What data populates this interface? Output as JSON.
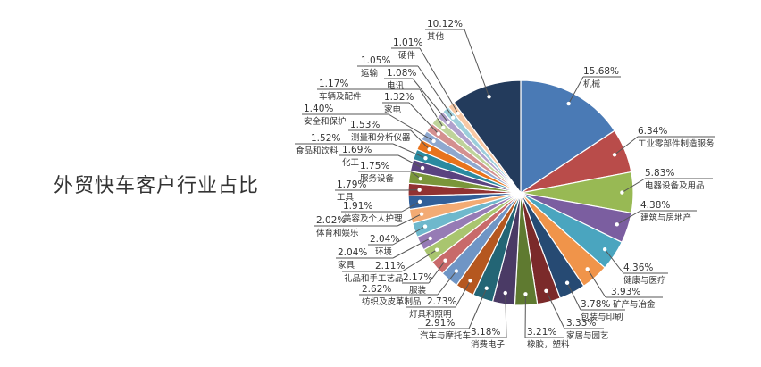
{
  "title": "外贸快车客户行业占比",
  "chart_data": {
    "type": "pie",
    "title": "外贸快车客户行业占比",
    "start": "top, clockwise",
    "slices": [
      {
        "name": "机械",
        "value": 15.68,
        "label": "15.68%",
        "color": "#4a7ab5"
      },
      {
        "name": "工业零部件制造服务",
        "value": 6.34,
        "label": "6.34%",
        "color": "#b94c4a"
      },
      {
        "name": "电器设备及用品",
        "value": 5.83,
        "label": "5.83%",
        "color": "#98b954"
      },
      {
        "name": "建筑与房地产",
        "value": 4.38,
        "label": "4.38%",
        "color": "#7b5ea0"
      },
      {
        "name": "健康与医疗",
        "value": 4.36,
        "label": "4.36%",
        "color": "#4aa5bf"
      },
      {
        "name": "矿产与冶金",
        "value": 3.93,
        "label": "3.93%",
        "color": "#f0944a"
      },
      {
        "name": "包装与印刷",
        "value": 3.78,
        "label": "3.78%",
        "color": "#264a73"
      },
      {
        "name": "家居与园艺",
        "value": 3.33,
        "label": "3.33%",
        "color": "#7b2a2a"
      },
      {
        "name": "橡胶，塑料",
        "value": 3.21,
        "label": "3.21%",
        "color": "#5f7a30"
      },
      {
        "name": "消费电子",
        "value": 3.18,
        "label": "3.18%",
        "color": "#4a3a65"
      },
      {
        "name": "汽车与摩托车",
        "value": 2.91,
        "label": "2.91%",
        "color": "#236575"
      },
      {
        "name": "灯具和照明",
        "value": 2.73,
        "label": "2.73%",
        "color": "#b5571f"
      },
      {
        "name": "纺织及皮革制品",
        "value": 2.62,
        "label": "2.62%",
        "color": "#6f95c5"
      },
      {
        "name": "服装",
        "value": 2.17,
        "label": "2.17%",
        "color": "#c86a6a"
      },
      {
        "name": "礼品和手工艺品",
        "value": 2.11,
        "label": "2.11%",
        "color": "#a9c56f"
      },
      {
        "name": "家具",
        "value": 2.04,
        "label": "2.04%",
        "color": "#967bb5"
      },
      {
        "name": "环境",
        "value": 2.04,
        "label": "2.04%",
        "color": "#6fb8cc"
      },
      {
        "name": "体育和娱乐",
        "value": 2.02,
        "label": "2.02%",
        "color": "#f3ab74"
      },
      {
        "name": "美容及个人护理",
        "value": 1.91,
        "label": "1.91%",
        "color": "#315f99"
      },
      {
        "name": "工具",
        "value": 1.79,
        "label": "1.79%",
        "color": "#923232"
      },
      {
        "name": "服务设备",
        "value": 1.75,
        "label": "1.75%",
        "color": "#7a963a"
      },
      {
        "name": "化工",
        "value": 1.69,
        "label": "1.69%",
        "color": "#5a4380"
      },
      {
        "name": "食品和饮料",
        "value": 1.52,
        "label": "1.52%",
        "color": "#2a8aa0"
      },
      {
        "name": "测量和分析仪器",
        "value": 1.53,
        "label": "1.53%",
        "color": "#e8731c"
      },
      {
        "name": "安全和保护",
        "value": 1.4,
        "label": "1.40%",
        "color": "#8fa8cf"
      },
      {
        "name": "家电",
        "value": 1.32,
        "label": "1.32%",
        "color": "#d49090"
      },
      {
        "name": "车辆及配件",
        "value": 1.17,
        "label": "1.17%",
        "color": "#bfd39a"
      },
      {
        "name": "电讯",
        "value": 1.08,
        "label": "1.08%",
        "color": "#b0a0cc"
      },
      {
        "name": "运输",
        "value": 1.05,
        "label": "1.05%",
        "color": "#9ccedb"
      },
      {
        "name": "硬件",
        "value": 1.01,
        "label": "1.01%",
        "color": "#f8c9a5"
      },
      {
        "name": "其他",
        "value": 10.12,
        "label": "10.12%",
        "color": "#233b5c"
      }
    ]
  }
}
